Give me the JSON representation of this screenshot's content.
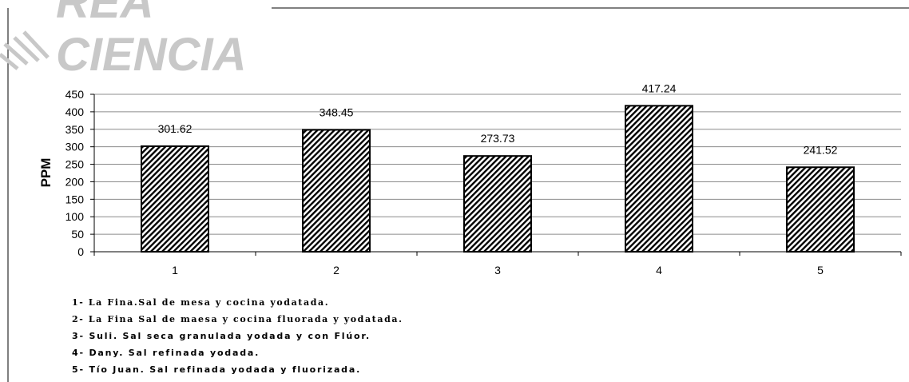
{
  "watermark": {
    "line1": "REA",
    "line2": "CIENCIA"
  },
  "chart_data": {
    "type": "bar",
    "categories": [
      "1",
      "2",
      "3",
      "4",
      "5"
    ],
    "values": [
      301.62,
      348.45,
      273.73,
      417.24,
      241.52
    ],
    "data_labels": [
      "301.62",
      "348.45",
      "273.73",
      "417.24",
      "241.52"
    ],
    "title": "",
    "xlabel": "",
    "ylabel": "PPM",
    "ylim": [
      0,
      450
    ],
    "yticks": [
      "0",
      "50",
      "100",
      "150",
      "200",
      "250",
      "300",
      "350",
      "400",
      "450"
    ],
    "grid": true,
    "bar_pattern": "diagonal-hatch",
    "bar_colors": {
      "fill": "#ffffff",
      "hatch": "#000000",
      "stroke": "#000000"
    }
  },
  "legend": [
    "1- La Fina.Sal de mesa y cocina yodatada.",
    "2- La Fina Sal de maesa y cocina fluorada y yodatada.",
    "3- Suli. Sal seca granulada yodada y con Flúor.",
    "4- Dany. Sal refinada yodada.",
    "5- Tío Juan. Sal refinada yodada y fluorizada."
  ]
}
